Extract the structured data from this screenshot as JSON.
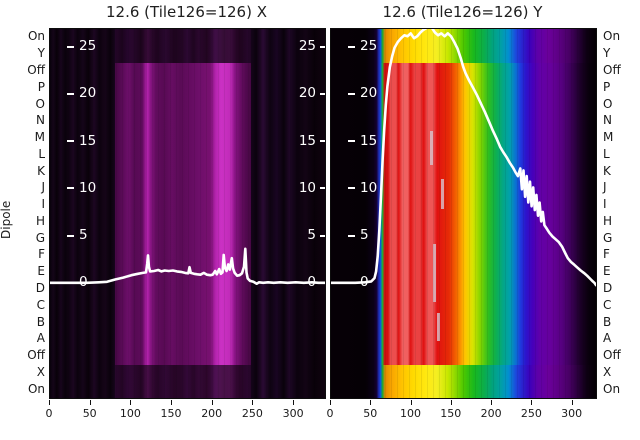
{
  "ylabel": "Dipole",
  "dipole_labels": [
    "On",
    "Y",
    "Off",
    "P",
    "O",
    "N",
    "M",
    "L",
    "K",
    "J",
    "I",
    "H",
    "G",
    "F",
    "E",
    "D",
    "C",
    "B",
    "A",
    "Off",
    "X",
    "On"
  ],
  "line_color": "#ffffff",
  "colors": {
    "figure_bg": "#ffffff",
    "axis_text": "#1a1a1a",
    "inner_tick_text": "#ffffff",
    "left_block_purple": "#6a0d66",
    "right_block_red": "#e01111"
  },
  "chart_data": [
    {
      "type": "heatmap",
      "panel": "X",
      "title": "12.6 (Tile126=126) X",
      "xlabel": "",
      "x_ticks": [
        0,
        50,
        100,
        150,
        200,
        250,
        300
      ],
      "x_max": 338,
      "inner_y_ticks": [
        25,
        20,
        15,
        10,
        5,
        0
      ],
      "inner_tick_sides": [
        "left",
        "right"
      ],
      "y_range": [
        -12.2,
        26.87
      ],
      "row_axis": "dipole_labels",
      "overlay_line_points": [
        [
          0,
          0
        ],
        [
          25,
          0
        ],
        [
          45,
          0
        ],
        [
          60,
          0.05
        ],
        [
          70,
          0.1
        ],
        [
          80,
          0.35
        ],
        [
          90,
          0.55
        ],
        [
          100,
          0.8
        ],
        [
          108,
          0.95
        ],
        [
          114,
          1.05
        ],
        [
          118,
          1.1
        ],
        [
          119.5,
          2.0
        ],
        [
          120.5,
          2.9
        ],
        [
          121.5,
          1.7
        ],
        [
          123,
          1.2
        ],
        [
          128,
          1.25
        ],
        [
          133,
          1.35
        ],
        [
          137,
          1.2
        ],
        [
          141,
          1.3
        ],
        [
          146,
          1.25
        ],
        [
          151,
          1.3
        ],
        [
          156,
          1.2
        ],
        [
          161,
          1.15
        ],
        [
          166,
          1.05
        ],
        [
          170,
          1.0
        ],
        [
          171.5,
          1.65
        ],
        [
          173,
          1.05
        ],
        [
          177,
          0.95
        ],
        [
          181,
          0.9
        ],
        [
          185,
          0.85
        ],
        [
          189,
          1.05
        ],
        [
          193,
          0.85
        ],
        [
          197,
          0.8
        ],
        [
          200,
          0.85
        ],
        [
          203,
          1.25
        ],
        [
          205,
          0.9
        ],
        [
          208,
          1.45
        ],
        [
          210,
          0.95
        ],
        [
          212,
          1.1
        ],
        [
          213.5,
          2.95
        ],
        [
          215,
          1.6
        ],
        [
          217,
          1.25
        ],
        [
          219,
          1.95
        ],
        [
          221,
          1.4
        ],
        [
          223.5,
          2.6
        ],
        [
          225,
          1.5
        ],
        [
          227,
          1.05
        ],
        [
          230,
          0.75
        ],
        [
          233,
          0.8
        ],
        [
          236,
          1.0
        ],
        [
          238.5,
          1.7
        ],
        [
          240,
          3.6
        ],
        [
          241.5,
          1.1
        ],
        [
          243,
          0.45
        ],
        [
          246,
          0.2
        ],
        [
          250,
          0.1
        ],
        [
          254,
          -0.1
        ],
        [
          257,
          0.05
        ],
        [
          262,
          0.0
        ],
        [
          268,
          0.05
        ],
        [
          275,
          0.0
        ],
        [
          283,
          0.05
        ],
        [
          292,
          0.0
        ],
        [
          302,
          0.05
        ],
        [
          312,
          0.0
        ],
        [
          322,
          0.05
        ],
        [
          330,
          0.0
        ],
        [
          338,
          0.0
        ]
      ]
    },
    {
      "type": "heatmap",
      "panel": "Y",
      "title": "12.6 (Tile126=126) Y",
      "xlabel": "",
      "x_ticks": [
        0,
        50,
        100,
        150,
        200,
        250,
        300
      ],
      "x_max": 329,
      "inner_y_ticks": [
        25,
        20,
        15,
        10,
        5,
        0
      ],
      "inner_tick_sides": [
        "left"
      ],
      "y_range": [
        -12.2,
        26.87
      ],
      "row_axis": "dipole_labels",
      "overlay_line_points": [
        [
          0,
          0
        ],
        [
          15,
          0
        ],
        [
          30,
          0
        ],
        [
          42,
          0.05
        ],
        [
          50,
          0.15
        ],
        [
          54,
          0.5
        ],
        [
          56,
          1.2
        ],
        [
          58,
          2.8
        ],
        [
          60,
          5.5
        ],
        [
          62,
          9.0
        ],
        [
          64,
          13.0
        ],
        [
          66,
          16.2
        ],
        [
          68,
          18.8
        ],
        [
          70,
          20.8
        ],
        [
          73,
          22.8
        ],
        [
          76,
          24.0
        ],
        [
          79,
          24.9
        ],
        [
          83,
          25.5
        ],
        [
          87,
          25.9
        ],
        [
          91,
          26.2
        ],
        [
          95,
          26.1
        ],
        [
          99,
          26.4
        ],
        [
          103,
          25.9
        ],
        [
          107,
          26.1
        ],
        [
          111,
          26.5
        ],
        [
          115,
          26.8
        ],
        [
          119,
          27.0
        ],
        [
          123,
          27.2
        ],
        [
          126,
          26.9
        ],
        [
          129,
          26.5
        ],
        [
          133,
          26.2
        ],
        [
          137,
          26.4
        ],
        [
          141,
          26.1
        ],
        [
          145,
          26.4
        ],
        [
          149,
          26.1
        ],
        [
          153,
          25.5
        ],
        [
          157,
          24.8
        ],
        [
          161,
          23.8
        ],
        [
          164,
          22.9
        ],
        [
          167,
          22.2
        ],
        [
          171,
          21.5
        ],
        [
          176,
          20.7
        ],
        [
          181,
          19.9
        ],
        [
          186,
          19.0
        ],
        [
          191,
          18.1
        ],
        [
          196,
          17.1
        ],
        [
          201,
          16.1
        ],
        [
          206,
          15.2
        ],
        [
          210,
          14.4
        ],
        [
          214,
          13.8
        ],
        [
          218,
          13.3
        ],
        [
          222,
          12.7
        ],
        [
          226,
          12.2
        ],
        [
          229,
          11.7
        ],
        [
          232,
          11.3
        ],
        [
          235,
          12.1
        ],
        [
          237,
          9.9
        ],
        [
          239,
          11.9
        ],
        [
          241,
          9.1
        ],
        [
          243,
          11.3
        ],
        [
          245,
          8.5
        ],
        [
          247,
          10.7
        ],
        [
          249,
          8.1
        ],
        [
          251,
          10.1
        ],
        [
          253,
          7.7
        ],
        [
          255,
          9.3
        ],
        [
          257,
          7.1
        ],
        [
          259,
          8.5
        ],
        [
          261,
          6.5
        ],
        [
          263,
          7.5
        ],
        [
          265,
          6.1
        ],
        [
          268,
          5.7
        ],
        [
          271,
          5.3
        ],
        [
          275,
          4.9
        ],
        [
          279,
          4.6
        ],
        [
          283,
          4.3
        ],
        [
          287,
          3.8
        ],
        [
          291,
          3.1
        ],
        [
          294,
          2.6
        ],
        [
          298,
          2.2
        ],
        [
          302,
          1.9
        ],
        [
          306,
          1.6
        ],
        [
          310,
          1.3
        ],
        [
          314,
          1.05
        ],
        [
          318,
          0.75
        ],
        [
          322,
          0.4
        ],
        [
          325,
          0.15
        ],
        [
          327,
          0.0
        ],
        [
          329,
          -0.25
        ]
      ]
    }
  ]
}
